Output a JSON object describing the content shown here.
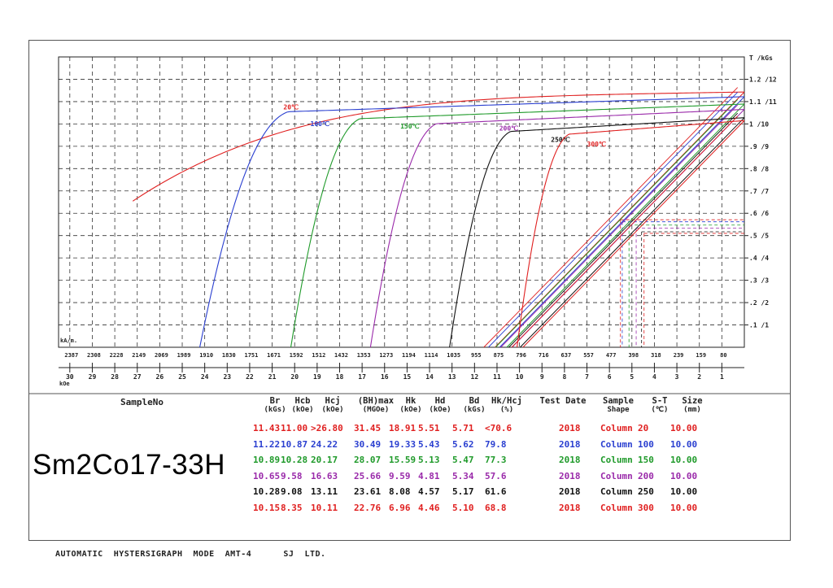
{
  "chart_data": {
    "type": "line",
    "title": "",
    "xlabel_primary": "kOe",
    "xlabel_secondary": "kA/m.",
    "ylabel": "T /kGs",
    "x_ticks_koe": [
      "30",
      "29",
      "28",
      "27",
      "26",
      "25",
      "24",
      "23",
      "22",
      "21",
      "20",
      "19",
      "18",
      "17",
      "16",
      "15",
      "14",
      "13",
      "12",
      "11",
      "10",
      "9",
      "8",
      "7",
      "6",
      "5",
      "4",
      "3",
      "2",
      "1"
    ],
    "x_ticks_kam": [
      "2387",
      "2308",
      "2228",
      "2149",
      "2069",
      "1989",
      "1910",
      "1830",
      "1751",
      "1671",
      "1592",
      "1512",
      "1432",
      "1353",
      "1273",
      "1194",
      "1114",
      "1035",
      "955",
      "875",
      "796",
      "716",
      "637",
      "557",
      "477",
      "398",
      "318",
      "239",
      "159",
      "80"
    ],
    "y_ticks": [
      ".1 /1",
      ".2 /2",
      ".3 /3",
      ".4 /4",
      ".5 /5",
      ".6 /6",
      ".7 /7",
      ".8 /8",
      ".9 /9",
      "1 /10",
      "1.1 /11",
      "1.2 /12"
    ],
    "xlim_koe": [
      30.5,
      0
    ],
    "ylim_kgs": [
      0,
      13
    ],
    "grid": true,
    "series": [
      {
        "name": "20℃",
        "color": "#e02020",
        "br": 11.43,
        "hcj": 27.2,
        "knee": 23.5,
        "label_at": [
          20.5,
          10.65
        ]
      },
      {
        "name": "100℃",
        "color": "#2a3fd0",
        "br": 11.22,
        "hcj": 24.22,
        "knee": 20.3,
        "label_at": [
          19.3,
          9.9
        ]
      },
      {
        "name": "150℃",
        "color": "#1f9a2a",
        "br": 10.89,
        "hcj": 20.17,
        "knee": 17.1,
        "label_at": [
          15.3,
          9.8
        ]
      },
      {
        "name": "200℃",
        "color": "#9a2aaa",
        "br": 10.65,
        "hcj": 16.63,
        "knee": 13.7,
        "label_at": [
          10.9,
          9.7
        ]
      },
      {
        "name": "250℃",
        "color": "#111111",
        "br": 10.28,
        "hcj": 13.11,
        "knee": 10.4,
        "label_at": [
          8.6,
          9.2
        ]
      },
      {
        "name": "300℃",
        "color": "#e02020",
        "br": 10.15,
        "hcj": 10.11,
        "knee": 7.8,
        "label_at": [
          7.0,
          9.0
        ]
      }
    ]
  },
  "table": {
    "sample_no_label": "SampleNo",
    "sample_name": "Sm2Co17-33H",
    "headers": [
      {
        "top": "Br",
        "bottom": "(kGs)"
      },
      {
        "top": "Hcb",
        "bottom": "(kOe)"
      },
      {
        "top": "Hcj",
        "bottom": "(kOe)"
      },
      {
        "top": "(BH)max",
        "bottom": "(MGOe)"
      },
      {
        "top": "Hk",
        "bottom": "(kOe)"
      },
      {
        "top": "Hd",
        "bottom": "(kOe)"
      },
      {
        "top": "Bd",
        "bottom": "(kGs)"
      },
      {
        "top": "Hk/Hcj",
        "bottom": "(%)"
      },
      {
        "top": "Test Date",
        "bottom": ""
      },
      {
        "top": "Sample",
        "bottom": "Shape"
      },
      {
        "top": "S-T",
        "bottom": "(℃)"
      },
      {
        "top": "Size",
        "bottom": "(mm)"
      }
    ],
    "rows": [
      {
        "color": "#e02020",
        "cells": [
          "11.43",
          "11.00",
          ">26.80",
          "31.45",
          "18.91",
          "5.51",
          "5.71",
          "<70.6",
          "2018",
          "Column",
          "20",
          "10.00"
        ]
      },
      {
        "color": "#2a3fd0",
        "cells": [
          "11.22",
          "10.87",
          "24.22",
          "30.49",
          "19.33",
          "5.43",
          "5.62",
          "79.8",
          "2018",
          "Column",
          "100",
          "10.00"
        ]
      },
      {
        "color": "#1f9a2a",
        "cells": [
          "10.89",
          "10.28",
          "20.17",
          "28.07",
          "15.59",
          "5.13",
          "5.47",
          "77.3",
          "2018",
          "Column",
          "150",
          "10.00"
        ]
      },
      {
        "color": "#9a2aaa",
        "cells": [
          "10.65",
          "9.58",
          "16.63",
          "25.66",
          "9.59",
          "4.81",
          "5.34",
          "57.6",
          "2018",
          "Column",
          "200",
          "10.00"
        ]
      },
      {
        "color": "#111111",
        "cells": [
          "10.28",
          "9.08",
          "13.11",
          "23.61",
          "8.08",
          "4.57",
          "5.17",
          "61.6",
          "2018",
          "Column",
          "250",
          "10.00"
        ]
      },
      {
        "color": "#e02020",
        "cells": [
          "10.15",
          "8.35",
          "10.11",
          "22.76",
          "6.96",
          "4.46",
          "5.10",
          "68.8",
          "2018",
          "Column",
          "300",
          "10.00"
        ]
      }
    ]
  },
  "footer": "AUTOMATIC  HYSTERSIGRAPH  MODE  AMT-4      SJ  LTD."
}
